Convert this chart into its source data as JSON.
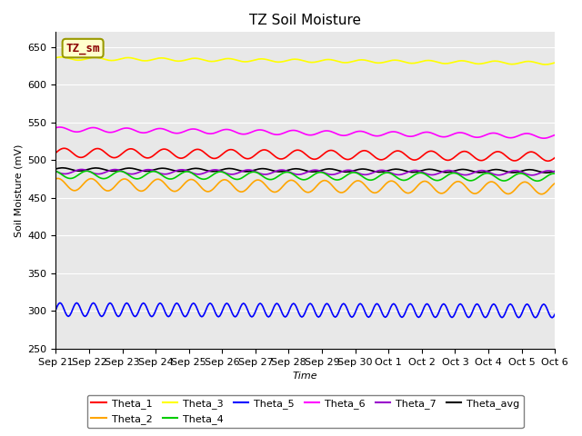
{
  "title": "TZ Soil Moisture",
  "xlabel": "Time",
  "ylabel": "Soil Moisture (mV)",
  "ylim": [
    250,
    670
  ],
  "yticks": [
    250,
    300,
    350,
    400,
    450,
    500,
    550,
    600,
    650
  ],
  "xtick_labels": [
    "Sep 21",
    "Sep 22",
    "Sep 23",
    "Sep 24",
    "Sep 25",
    "Sep 26",
    "Sep 27",
    "Sep 28",
    "Sep 29",
    "Sep 30",
    "Oct 1",
    "Oct 2",
    "Oct 3",
    "Oct 4",
    "Oct 5",
    "Oct 6"
  ],
  "n_points": 360,
  "series": {
    "Theta_1": {
      "color": "#ff0000",
      "base": 510,
      "amplitude": 6,
      "freq_mult": 1.0,
      "trend": -0.014,
      "phase": 0.0
    },
    "Theta_2": {
      "color": "#ffa500",
      "base": 468,
      "amplitude": 8,
      "freq_mult": 1.0,
      "trend": -0.014,
      "phase": 1.2
    },
    "Theta_3": {
      "color": "#ffff00",
      "base": 635,
      "amplitude": 2,
      "freq_mult": 1.0,
      "trend": -0.017,
      "phase": 0.5
    },
    "Theta_4": {
      "color": "#00cc00",
      "base": 481,
      "amplitude": 5,
      "freq_mult": 1.0,
      "trend": -0.01,
      "phase": 2.0
    },
    "Theta_5": {
      "color": "#0000ff",
      "base": 302,
      "amplitude": 9,
      "freq_mult": 2.0,
      "trend": -0.005,
      "phase": 0.0
    },
    "Theta_6": {
      "color": "#ff00ff",
      "base": 541,
      "amplitude": 3,
      "freq_mult": 1.0,
      "trend": -0.025,
      "phase": 0.8
    },
    "Theta_7": {
      "color": "#9900cc",
      "base": 485,
      "amplitude": 3,
      "freq_mult": 1.0,
      "trend": -0.005,
      "phase": 3.0
    },
    "Theta_avg": {
      "color": "#000000",
      "base": 488,
      "amplitude": 2,
      "freq_mult": 1.0,
      "trend": -0.007,
      "phase": 0.3
    }
  },
  "legend_label": "TZ_sm",
  "legend_label_color": "#8b0000",
  "legend_box_facecolor": "#ffffcc",
  "legend_box_edgecolor": "#999900",
  "plot_bg_color": "#e8e8e8",
  "fig_bg_color": "#ffffff",
  "grid_color": "#ffffff",
  "title_fontsize": 11,
  "axis_label_fontsize": 8,
  "tick_fontsize": 8,
  "legend_fontsize": 8,
  "line_width": 1.2
}
